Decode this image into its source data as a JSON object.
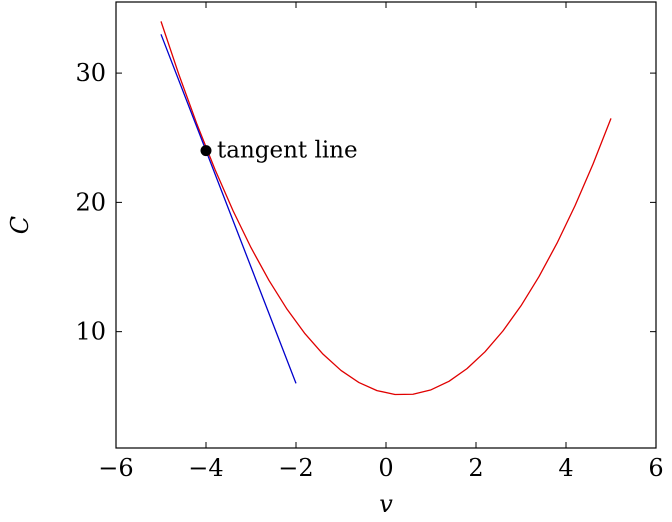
{
  "chart_data": {
    "type": "line",
    "xlabel": "v",
    "ylabel": "C",
    "xlim": [
      -6,
      6
    ],
    "ylim": [
      1,
      35.5
    ],
    "x_ticks": [
      -6,
      -4,
      -2,
      0,
      2,
      4,
      6
    ],
    "y_ticks": [
      10,
      20,
      30
    ],
    "grid": false,
    "series": [
      {
        "color": "#e00000",
        "x": [
          -5,
          -4.6,
          -4.2,
          -3.8,
          -3.4,
          -3,
          -2.6,
          -2.2,
          -1.8,
          -1.4,
          -1,
          -0.6,
          -0.2,
          0.2,
          0.6,
          1,
          1.4,
          1.8,
          2.2,
          2.6,
          3,
          3.4,
          3.8,
          4.2,
          4.6,
          5
        ],
        "y": [
          34,
          29.86,
          26.04,
          22.54,
          19.36,
          16.5,
          13.96,
          11.74,
          9.84,
          8.26,
          7,
          6.06,
          5.44,
          5.14,
          5.16,
          5.5,
          6.16,
          7.14,
          8.44,
          10.06,
          12,
          14.26,
          16.84,
          19.74,
          22.96,
          26.5
        ]
      },
      {
        "color": "#0000cc",
        "x": [
          -5,
          -2
        ],
        "y": [
          33,
          6
        ]
      }
    ],
    "annotations": [
      {
        "text": "tangent line",
        "x": -4,
        "y": 24
      }
    ]
  }
}
